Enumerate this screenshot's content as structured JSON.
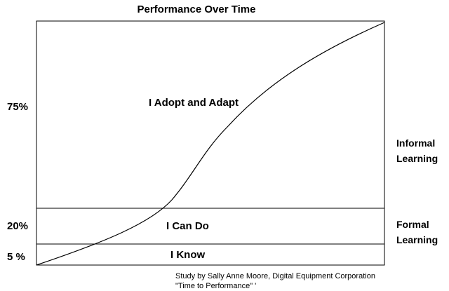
{
  "title": "Performance Over Time",
  "y_labels": [
    {
      "text": "75%",
      "level": 75
    },
    {
      "text": "20%",
      "level": 20
    },
    {
      "text": "5 %",
      "level": 5
    }
  ],
  "zones": {
    "know": "I Know",
    "can_do": "I Can Do",
    "adopt": "I Adopt and Adapt"
  },
  "side_labels": {
    "informal": [
      "Informal",
      "Learning"
    ],
    "formal": [
      "Formal",
      "Learning"
    ]
  },
  "note": {
    "line1": "Study by Sally Anne Moore, Digital Equipment Corporation",
    "line2": "\"Time to Performance\" '"
  },
  "colors": {
    "line": "#000000",
    "background": "#ffffff"
  }
}
